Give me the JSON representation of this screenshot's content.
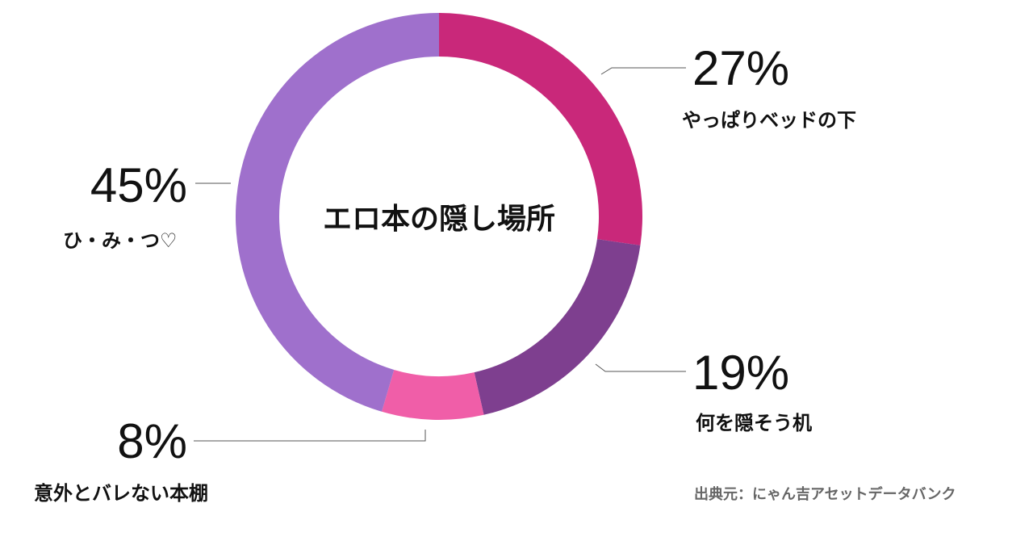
{
  "chart_data": {
    "type": "donut",
    "title": "エロ本の隠し場所",
    "categories": [
      "やっぱりベッドの下",
      "何を隠そう机",
      "意外とバレない本棚",
      "ひ・み・つ♡"
    ],
    "values": [
      27,
      19,
      8,
      45
    ],
    "value_labels": [
      "27%",
      "19%",
      "8%",
      "45%"
    ],
    "colors": [
      "#C9287A",
      "#7E3F8F",
      "#F05EA8",
      "#9F70CC"
    ],
    "start": "12 o'clock",
    "direction": "clockwise",
    "legend": "none",
    "source": "出典元：にゃん吉アセットデータバンク"
  }
}
